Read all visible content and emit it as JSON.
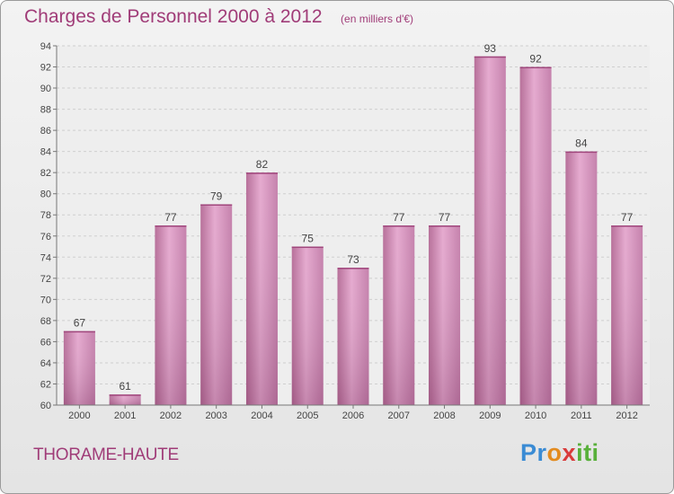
{
  "title": "Charges de Personnel 2000 à 2012",
  "unit": "(en milliers d'€)",
  "commune": "THORAME-HAUTE",
  "logo": {
    "p1": "Pr",
    "p2": "o",
    "p3": "x",
    "p4": "iti"
  },
  "chart_data": {
    "type": "bar",
    "categories": [
      "2000",
      "2001",
      "2002",
      "2003",
      "2004",
      "2005",
      "2006",
      "2007",
      "2008",
      "2009",
      "2010",
      "2011",
      "2012"
    ],
    "values": [
      67,
      61,
      77,
      79,
      82,
      75,
      73,
      77,
      77,
      93,
      92,
      84,
      77
    ],
    "ylim": [
      60,
      94
    ],
    "yticks": [
      60,
      62,
      64,
      66,
      68,
      70,
      72,
      74,
      76,
      78,
      80,
      82,
      84,
      86,
      88,
      90,
      92,
      94
    ],
    "grid": true,
    "bar_color": "#c87aa8",
    "title": "Charges de Personnel 2000 à 2012",
    "xlabel": "",
    "ylabel": ""
  }
}
